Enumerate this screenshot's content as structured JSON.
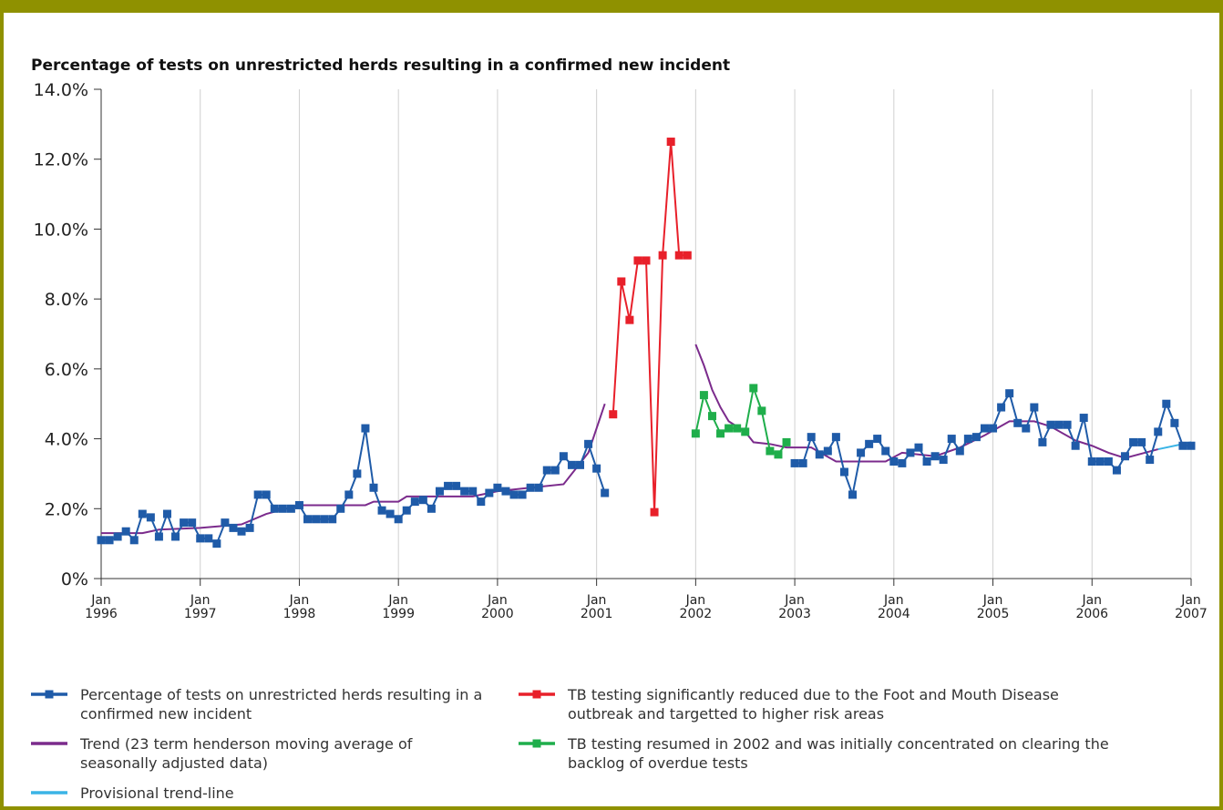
{
  "chart_data": {
    "type": "line",
    "title": "Percentage of tests on unrestricted herds resulting in a confirmed new incident",
    "xlim": [
      "1996-01",
      "2007-01"
    ],
    "xticks": [
      {
        "value": "1996-01",
        "label": "Jan 1996"
      },
      {
        "value": "1997-01",
        "label": "Jan 1997"
      },
      {
        "value": "1998-01",
        "label": "Jan 1998"
      },
      {
        "value": "1999-01",
        "label": "Jan 1999"
      },
      {
        "value": "2000-01",
        "label": "Jan 2000"
      },
      {
        "value": "2001-01",
        "label": "Jan 2001"
      },
      {
        "value": "2002-01",
        "label": "Jan 2002"
      },
      {
        "value": "2003-01",
        "label": "Jan 2003"
      },
      {
        "value": "2004-01",
        "label": "Jan 2004"
      },
      {
        "value": "2005-01",
        "label": "Jan 2005"
      },
      {
        "value": "2006-01",
        "label": "Jan 2006"
      },
      {
        "value": "2007-01",
        "label": "Jan 2007"
      }
    ],
    "ylim": [
      0,
      14
    ],
    "yticks": [
      {
        "value": 0,
        "label": "0%"
      },
      {
        "value": 2,
        "label": "2.0%"
      },
      {
        "value": 4,
        "label": "4.0%"
      },
      {
        "value": 6,
        "label": "6.0%"
      },
      {
        "value": 8,
        "label": "8.0%"
      },
      {
        "value": 10,
        "label": "10.0%"
      },
      {
        "value": 12,
        "label": "12.0%"
      },
      {
        "value": 14,
        "label": "14.0%"
      }
    ],
    "grid": true,
    "series": [
      {
        "name": "Percentage of tests on unrestricted herds resulting in a confirmed new incident",
        "color": "#1f5ba8",
        "markers": true,
        "x": [
          "1996-01",
          "1996-02",
          "1996-03",
          "1996-04",
          "1996-05",
          "1996-06",
          "1996-07",
          "1996-08",
          "1996-09",
          "1996-10",
          "1996-11",
          "1996-12",
          "1997-01",
          "1997-02",
          "1997-03",
          "1997-04",
          "1997-05",
          "1997-06",
          "1997-07",
          "1997-08",
          "1997-09",
          "1997-10",
          "1997-11",
          "1997-12",
          "1998-01",
          "1998-02",
          "1998-03",
          "1998-04",
          "1998-05",
          "1998-06",
          "1998-07",
          "1998-08",
          "1998-09",
          "1998-10",
          "1998-11",
          "1998-12",
          "1999-01",
          "1999-02",
          "1999-03",
          "1999-04",
          "1999-05",
          "1999-06",
          "1999-07",
          "1999-08",
          "1999-09",
          "1999-10",
          "1999-11",
          "1999-12",
          "2000-01",
          "2000-02",
          "2000-03",
          "2000-04",
          "2000-05",
          "2000-06",
          "2000-07",
          "2000-08",
          "2000-09",
          "2000-10",
          "2000-11",
          "2000-12",
          "2001-01",
          "2001-02",
          "2001-03",
          "2003-01",
          "2003-02",
          "2003-03",
          "2003-04",
          "2003-05",
          "2003-06",
          "2003-07",
          "2003-08",
          "2003-09",
          "2003-10",
          "2003-11",
          "2003-12",
          "2004-01",
          "2004-02",
          "2004-03",
          "2004-04",
          "2004-05",
          "2004-06",
          "2004-07",
          "2004-08",
          "2004-09",
          "2004-10",
          "2004-11",
          "2004-12",
          "2005-01",
          "2005-02",
          "2005-03",
          "2005-04",
          "2005-05",
          "2005-06",
          "2005-07",
          "2005-08",
          "2005-09",
          "2005-10",
          "2005-11",
          "2005-12",
          "2006-01",
          "2006-02",
          "2006-03",
          "2006-04",
          "2006-05",
          "2006-06",
          "2006-07",
          "2006-08",
          "2006-09",
          "2006-10",
          "2006-11",
          "2006-12",
          "2007-01"
        ],
        "values": [
          1.1,
          1.1,
          1.2,
          1.35,
          1.1,
          1.85,
          1.75,
          1.2,
          1.85,
          1.2,
          1.6,
          1.6,
          1.15,
          1.15,
          1.0,
          1.6,
          1.45,
          1.35,
          1.45,
          2.4,
          2.4,
          2.0,
          2.0,
          2.0,
          2.1,
          1.7,
          1.7,
          1.7,
          1.7,
          2.0,
          2.4,
          3.0,
          4.3,
          2.6,
          1.95,
          1.85,
          1.7,
          1.95,
          2.2,
          2.25,
          2.0,
          2.5,
          2.65,
          2.65,
          2.5,
          2.5,
          2.2,
          2.45,
          2.6,
          2.5,
          2.4,
          2.4,
          2.6,
          2.6,
          3.1,
          3.1,
          3.5,
          3.25,
          3.25,
          3.85,
          3.15,
          2.45,
          null,
          3.3,
          3.3,
          4.05,
          3.55,
          3.65,
          4.05,
          3.05,
          2.4,
          3.6,
          3.85,
          4.0,
          3.65,
          3.35,
          3.3,
          3.6,
          3.75,
          3.35,
          3.5,
          3.4,
          4.0,
          3.65,
          4.0,
          4.05,
          4.3,
          4.3,
          4.9,
          5.3,
          4.45,
          4.3,
          4.9,
          3.9,
          4.4,
          4.4,
          4.4,
          3.8,
          4.6,
          3.35,
          3.35,
          3.35,
          3.1,
          3.5,
          3.9,
          3.9,
          3.4,
          4.2,
          5.0,
          4.45,
          3.8,
          3.8
        ]
      },
      {
        "name": "TB testing significantly reduced due to the Foot and Mouth Disease outbreak and targetted to higher risk areas",
        "color": "#e8202a",
        "markers": true,
        "x": [
          "2001-03",
          "2001-04",
          "2001-05",
          "2001-06",
          "2001-07",
          "2001-08",
          "2001-09",
          "2001-10",
          "2001-11",
          "2001-12"
        ],
        "values": [
          4.7,
          8.5,
          7.4,
          9.1,
          9.1,
          1.9,
          9.25,
          12.5,
          9.25,
          9.25
        ]
      },
      {
        "name": "Trend (23 term henderson moving average of seasonally adjusted data)",
        "color": "#7b2b8c",
        "markers": false,
        "x": [
          "1996-01",
          "1996-06",
          "1996-08",
          "1997-01",
          "1997-06",
          "1997-09",
          "1998-01",
          "1998-09",
          "1998-10",
          "1999-01",
          "1999-02",
          "1999-10",
          "2000-01",
          "2000-05",
          "2000-09",
          "2000-12",
          "2001-01",
          "2001-02",
          "2001-03",
          "2002-01",
          "2002-02",
          "2002-03",
          "2002-04",
          "2002-05",
          "2002-07",
          "2002-08",
          "2002-10",
          "2002-12",
          "2003-03",
          "2003-06",
          "2003-12",
          "2004-02",
          "2004-06",
          "2004-09",
          "2004-12",
          "2005-03",
          "2005-06",
          "2005-08",
          "2005-11",
          "2006-01",
          "2006-03",
          "2006-05",
          "2006-09"
        ],
        "values": [
          1.3,
          1.3,
          1.4,
          1.45,
          1.55,
          1.85,
          2.1,
          2.1,
          2.2,
          2.2,
          2.35,
          2.35,
          2.5,
          2.6,
          2.7,
          3.6,
          4.3,
          5.0,
          null,
          6.7,
          6.1,
          5.4,
          4.9,
          4.5,
          4.2,
          3.9,
          3.85,
          3.75,
          3.75,
          3.35,
          3.35,
          3.6,
          3.5,
          3.75,
          4.1,
          4.5,
          4.5,
          4.35,
          3.95,
          3.8,
          3.6,
          3.45,
          3.7
        ]
      },
      {
        "name": "TB testing resumed in 2002 and was initially concentrated on clearing the backlog of overdue tests",
        "color": "#1fae4b",
        "markers": true,
        "x": [
          "2002-01",
          "2002-02",
          "2002-03",
          "2002-04",
          "2002-05",
          "2002-06",
          "2002-07",
          "2002-08",
          "2002-09",
          "2002-10",
          "2002-11",
          "2002-12"
        ],
        "values": [
          4.15,
          5.25,
          4.65,
          4.15,
          4.3,
          4.3,
          4.2,
          5.45,
          4.8,
          3.65,
          3.55,
          3.9
        ]
      },
      {
        "name": "Provisional trend-line",
        "color": "#3ab4e6",
        "markers": false,
        "x": [
          "2006-09",
          "2007-01"
        ],
        "values": [
          3.7,
          3.9
        ]
      }
    ]
  }
}
